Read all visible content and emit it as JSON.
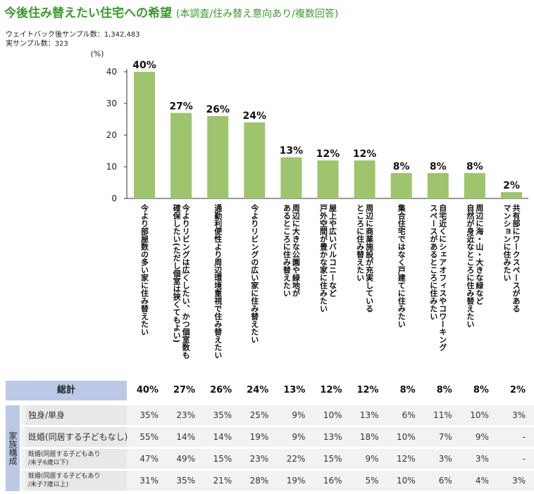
{
  "title": "今後住み替えたい住宅への希望",
  "subtitle": "(本調査/住み替え意向あり/複数回答)",
  "sample_weighted": "ウェイトバック後サンプル数：1,342,483",
  "sample_actual": "実サンプル数：323",
  "colors": {
    "bar": "#9ec46e",
    "title": "#3a9a2c",
    "header": "#bcc9e6"
  },
  "chart_data": {
    "type": "bar",
    "ylabel": "(%)",
    "ylim": [
      0,
      40
    ],
    "yticks": [
      0,
      10,
      20,
      30,
      40
    ],
    "grid": false,
    "categories": [
      "今より部屋数の多い家に住み替えたい",
      "今よりリビングは広くしたい、かつ個室数も\n確保したい(ただし個室は狭くてもよい)",
      "通勤利便性より周辺環境重視で住み替えたい",
      "今よりリビングの広い家に住み替えたい",
      "周辺に大きな公園や緑地が\nあるところに住み替えたい",
      "屋上や広いバルコニーなど\n戸外空間が豊かな家に住みたい",
      "周辺に商業施設が充実している\nところに住み替えたい",
      "集合住宅ではなく戸建てに住みたい",
      "自宅近くにシェアオフィスやコワーキング\nスペースがあるところに住みたい",
      "周辺に海・山・大きな緑など\n自然が身近なところに住み替えたい",
      "共有部にワークスペースがある\nマンションに住みたい"
    ],
    "values": [
      40,
      27,
      26,
      24,
      13,
      12,
      12,
      8,
      8,
      8,
      2
    ],
    "value_labels": [
      "40%",
      "27%",
      "26%",
      "24%",
      "13%",
      "12%",
      "12%",
      "8%",
      "8%",
      "8%",
      "2%"
    ]
  },
  "table": {
    "total_label": "総計",
    "totals": [
      "40%",
      "27%",
      "26%",
      "24%",
      "13%",
      "12%",
      "12%",
      "8%",
      "8%",
      "8%",
      "2%"
    ],
    "group_label": "家族構成",
    "rows": [
      {
        "label": "独身/単身",
        "values": [
          "35%",
          "23%",
          "35%",
          "25%",
          "9%",
          "10%",
          "13%",
          "6%",
          "11%",
          "10%",
          "3%"
        ]
      },
      {
        "label": "既婚(同居する子どもなし)",
        "values": [
          "55%",
          "14%",
          "14%",
          "19%",
          "9%",
          "13%",
          "18%",
          "10%",
          "7%",
          "9%",
          "-"
        ]
      },
      {
        "label": "既婚(同居する子どもあり\n/末子6歳以下)",
        "values": [
          "47%",
          "49%",
          "15%",
          "23%",
          "22%",
          "15%",
          "9%",
          "12%",
          "3%",
          "3%",
          "-"
        ]
      },
      {
        "label": "既婚(同居する子どもあり\n/末子7歳以上)",
        "values": [
          "31%",
          "35%",
          "21%",
          "28%",
          "19%",
          "16%",
          "5%",
          "10%",
          "6%",
          "4%",
          "3%"
        ]
      }
    ]
  }
}
